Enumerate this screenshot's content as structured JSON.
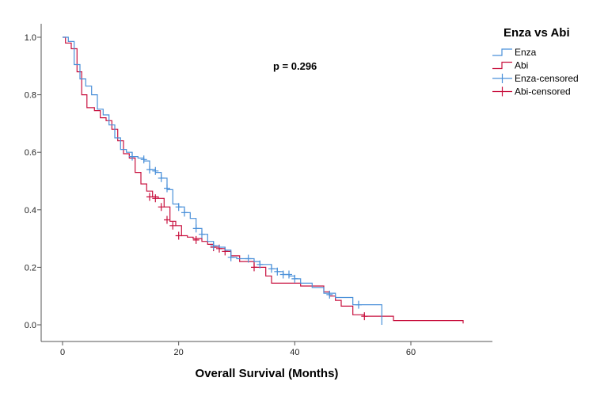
{
  "chart_data": {
    "type": "line",
    "subtype": "kaplan-meier step curve",
    "title": "",
    "xlabel": "Overall Survival (Months)",
    "ylabel": "",
    "xlim": [
      -5,
      76
    ],
    "ylim": [
      -0.05,
      1.05
    ],
    "xticks": [
      0,
      20,
      40,
      60
    ],
    "yticks": [
      0.0,
      0.2,
      0.4,
      0.6,
      0.8,
      1.0
    ],
    "xtick_labels": [
      "0",
      "20",
      "40",
      "60"
    ],
    "ytick_labels": [
      "0.0",
      "0.2",
      "0.4",
      "0.6",
      "0.8",
      "1.0"
    ],
    "annotation": "p = 0.296",
    "legend": {
      "title": "Enza vs Abi",
      "position": "top-right",
      "entries": [
        "Enza",
        "Abi",
        "Enza-censored",
        "Abi-censored"
      ]
    },
    "series": [
      {
        "name": "Enza",
        "color": "#4a90d9",
        "steps": [
          [
            0,
            1.0
          ],
          [
            1,
            0.985
          ],
          [
            2,
            0.905
          ],
          [
            3,
            0.855
          ],
          [
            4,
            0.83
          ],
          [
            5,
            0.8
          ],
          [
            6,
            0.75
          ],
          [
            7,
            0.73
          ],
          [
            8,
            0.695
          ],
          [
            9,
            0.65
          ],
          [
            10,
            0.61
          ],
          [
            11,
            0.6
          ],
          [
            12,
            0.585
          ],
          [
            13,
            0.58
          ],
          [
            14,
            0.57
          ],
          [
            15,
            0.54
          ],
          [
            16,
            0.53
          ],
          [
            17,
            0.51
          ],
          [
            18,
            0.47
          ],
          [
            19,
            0.42
          ],
          [
            20,
            0.41
          ],
          [
            21,
            0.39
          ],
          [
            22,
            0.37
          ],
          [
            23,
            0.335
          ],
          [
            24,
            0.315
          ],
          [
            25,
            0.29
          ],
          [
            26,
            0.275
          ],
          [
            27,
            0.27
          ],
          [
            28,
            0.26
          ],
          [
            29,
            0.235
          ],
          [
            30,
            0.23
          ],
          [
            33,
            0.22
          ],
          [
            34,
            0.21
          ],
          [
            36,
            0.195
          ],
          [
            37,
            0.185
          ],
          [
            38,
            0.175
          ],
          [
            39,
            0.17
          ],
          [
            40,
            0.16
          ],
          [
            41,
            0.145
          ],
          [
            43,
            0.13
          ],
          [
            45,
            0.11
          ],
          [
            47,
            0.095
          ],
          [
            50,
            0.07
          ],
          [
            55,
            0.0
          ]
        ],
        "censored": [
          [
            12,
            0.585
          ],
          [
            14,
            0.575
          ],
          [
            15,
            0.54
          ],
          [
            16,
            0.535
          ],
          [
            17,
            0.51
          ],
          [
            18,
            0.475
          ],
          [
            20,
            0.41
          ],
          [
            21,
            0.39
          ],
          [
            23,
            0.335
          ],
          [
            24,
            0.315
          ],
          [
            26,
            0.275
          ],
          [
            29,
            0.235
          ],
          [
            32,
            0.23
          ],
          [
            34,
            0.21
          ],
          [
            36,
            0.195
          ],
          [
            37,
            0.185
          ],
          [
            38,
            0.175
          ],
          [
            39,
            0.175
          ],
          [
            40,
            0.16
          ],
          [
            46,
            0.105
          ],
          [
            51,
            0.07
          ]
        ]
      },
      {
        "name": "Abi",
        "color": "#c8103e",
        "steps": [
          [
            0,
            1.0
          ],
          [
            0.5,
            0.98
          ],
          [
            1.5,
            0.96
          ],
          [
            2.5,
            0.88
          ],
          [
            3.3,
            0.8
          ],
          [
            4.2,
            0.755
          ],
          [
            5.5,
            0.745
          ],
          [
            6.5,
            0.72
          ],
          [
            7.5,
            0.71
          ],
          [
            8.5,
            0.68
          ],
          [
            9.5,
            0.64
          ],
          [
            10.5,
            0.595
          ],
          [
            11.5,
            0.58
          ],
          [
            12.5,
            0.53
          ],
          [
            13.5,
            0.49
          ],
          [
            14.5,
            0.465
          ],
          [
            15.5,
            0.445
          ],
          [
            16.5,
            0.44
          ],
          [
            17.5,
            0.41
          ],
          [
            18.5,
            0.36
          ],
          [
            19.5,
            0.345
          ],
          [
            20.5,
            0.31
          ],
          [
            21.5,
            0.305
          ],
          [
            22.5,
            0.3
          ],
          [
            24,
            0.29
          ],
          [
            25,
            0.28
          ],
          [
            26,
            0.27
          ],
          [
            27,
            0.265
          ],
          [
            28,
            0.255
          ],
          [
            29,
            0.24
          ],
          [
            30.5,
            0.22
          ],
          [
            33,
            0.2
          ],
          [
            35,
            0.17
          ],
          [
            36,
            0.145
          ],
          [
            41,
            0.135
          ],
          [
            45,
            0.115
          ],
          [
            46,
            0.1
          ],
          [
            47,
            0.085
          ],
          [
            48,
            0.065
          ],
          [
            50,
            0.035
          ],
          [
            52,
            0.03
          ],
          [
            57,
            0.015
          ],
          [
            69,
            0.005
          ]
        ],
        "censored": [
          [
            15,
            0.445
          ],
          [
            16,
            0.44
          ],
          [
            17,
            0.41
          ],
          [
            18,
            0.365
          ],
          [
            19,
            0.345
          ],
          [
            20,
            0.31
          ],
          [
            23,
            0.295
          ],
          [
            26,
            0.27
          ],
          [
            27,
            0.265
          ],
          [
            28,
            0.255
          ],
          [
            33,
            0.2
          ],
          [
            52,
            0.03
          ]
        ]
      }
    ]
  }
}
